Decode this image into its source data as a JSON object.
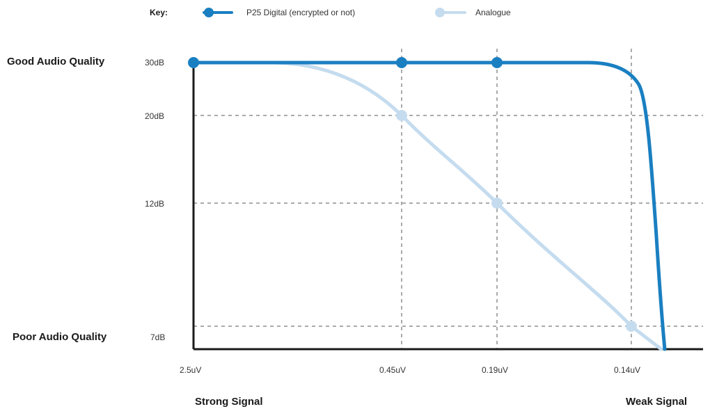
{
  "chart_data": {
    "type": "line",
    "title": "",
    "xlabel": "",
    "ylabel": "",
    "key_label": "Key:",
    "x_categories": [
      "2.5uV",
      "0.45uV",
      "0.19uV",
      "0.14uV"
    ],
    "y_ticks": [
      {
        "value": 30,
        "label": "30dB"
      },
      {
        "value": 20,
        "label": "20dB"
      },
      {
        "value": 12,
        "label": "12dB"
      },
      {
        "value": 7,
        "label": "7dB"
      }
    ],
    "y_quality_labels": {
      "good": "Good Audio Quality",
      "poor": "Poor Audio Quality"
    },
    "x_end_labels": {
      "left": "Strong Signal",
      "right": "Weak Signal"
    },
    "grid": "dashed",
    "legend_placement": "top",
    "series": [
      {
        "name": "P25 Digital (encrypted or not)",
        "color": "#1a7fc1",
        "points": [
          {
            "x": "2.5uV",
            "y": 30
          },
          {
            "x": "0.45uV",
            "y": 30
          },
          {
            "x": "0.19uV",
            "y": 30
          }
        ]
      },
      {
        "name": "Analogue",
        "color": "#c5dcef",
        "points": [
          {
            "x": "0.45uV",
            "y": 20
          },
          {
            "x": "0.19uV",
            "y": 12
          },
          {
            "x": "0.14uV",
            "y": 7
          }
        ]
      }
    ]
  }
}
